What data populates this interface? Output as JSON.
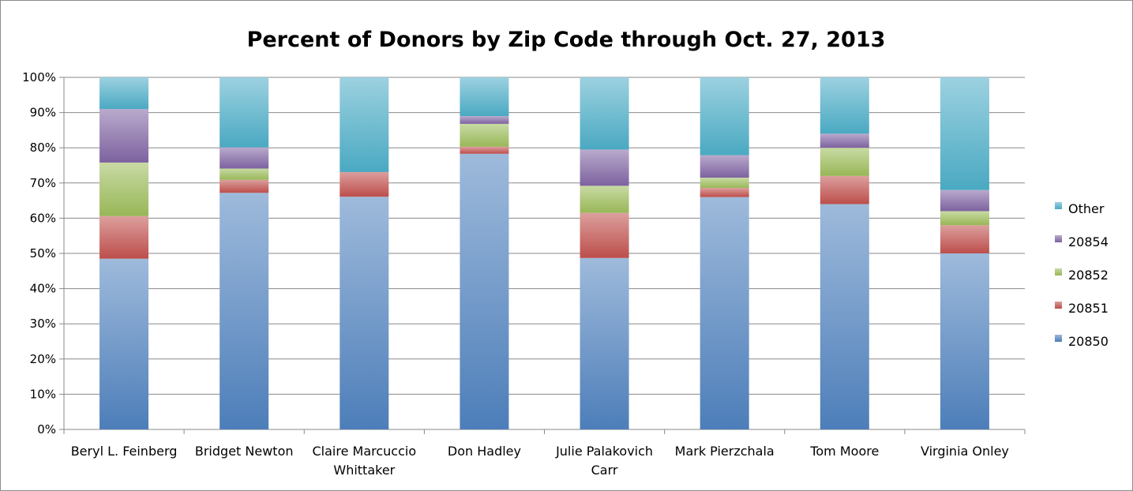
{
  "chart_data": {
    "type": "bar",
    "stacked": true,
    "percent_stacked": true,
    "title": "Percent of Donors by Zip Code through Oct. 27, 2013",
    "xlabel": "",
    "ylabel": "",
    "ylim": [
      0,
      100
    ],
    "y_ticks": [
      "0%",
      "10%",
      "20%",
      "30%",
      "40%",
      "50%",
      "60%",
      "70%",
      "80%",
      "90%",
      "100%"
    ],
    "grid": true,
    "legend_position": "right",
    "categories": [
      [
        "Beryl L. Feinberg"
      ],
      [
        "Bridget Newton"
      ],
      [
        "Claire Marcuccio",
        "Whittaker"
      ],
      [
        "Don Hadley"
      ],
      [
        "Julie Palakovich",
        "Carr"
      ],
      [
        "Mark Pierzchala"
      ],
      [
        "Tom Moore"
      ],
      [
        "Virginia Onley"
      ]
    ],
    "series": [
      {
        "name": "20850",
        "color": "#4f81bd",
        "values": [
          48.5,
          67.2,
          66.1,
          78.3,
          48.7,
          66.0,
          64.0,
          50.0
        ]
      },
      {
        "name": "20851",
        "color": "#c0504d",
        "values": [
          12.1,
          3.7,
          7.0,
          2.0,
          12.8,
          2.6,
          8.0,
          8.0
        ]
      },
      {
        "name": "20852",
        "color": "#9bbb59",
        "values": [
          15.2,
          3.2,
          0.0,
          6.5,
          7.7,
          2.9,
          8.0,
          4.0
        ]
      },
      {
        "name": "20854",
        "color": "#8064a2",
        "values": [
          15.2,
          6.0,
          0.0,
          2.2,
          10.3,
          6.4,
          4.0,
          6.0
        ]
      },
      {
        "name": "Other",
        "color": "#4bacc6",
        "values": [
          9.0,
          19.9,
          26.9,
          11.0,
          20.5,
          22.1,
          16.0,
          32.0
        ]
      }
    ]
  }
}
